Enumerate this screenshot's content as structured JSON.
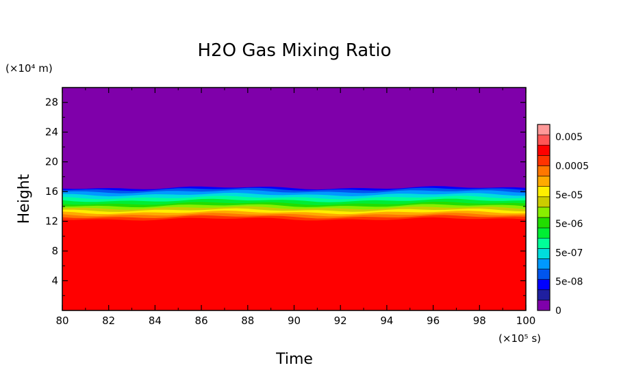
{
  "chart_data": {
    "type": "heatmap",
    "title": "H2O Gas Mixing Ratio",
    "xlabel": "Time",
    "ylabel": "Height",
    "x_unit_label": "(×10⁵ s)",
    "y_unit_label": "(×10⁴ m)",
    "xlim": [
      80,
      100
    ],
    "ylim": [
      0,
      30
    ],
    "x_ticks": [
      "80",
      "82",
      "84",
      "86",
      "88",
      "90",
      "92",
      "94",
      "96",
      "98",
      "100"
    ],
    "y_ticks": [
      "4",
      "8",
      "12",
      "16",
      "20",
      "24",
      "28"
    ],
    "colorbar": {
      "labels": [
        "0",
        "5e-08",
        "5e-07",
        "5e-06",
        "5e-05",
        "0.0005",
        "0.005"
      ],
      "colors": [
        "#7f00aa",
        "#1f1f9f",
        "#0000ff",
        "#0055ee",
        "#0099ff",
        "#00dddd",
        "#00ff99",
        "#00ee33",
        "#22dd00",
        "#88ee00",
        "#cccc00",
        "#ffee00",
        "#ffaa00",
        "#ff7700",
        "#ff3300",
        "#ff0000",
        "#ff5555",
        "#ff9999"
      ]
    },
    "field": {
      "description_levels": "height in 1e4 m of contour boundaries (upper edge of each band)",
      "bands": [
        {
          "color_index": 15,
          "top": 12.3
        },
        {
          "color_index": 14,
          "top": 12.6
        },
        {
          "color_index": 13,
          "top": 12.9
        },
        {
          "color_index": 12,
          "top": 13.2
        },
        {
          "color_index": 11,
          "top": 13.5
        },
        {
          "color_index": 10,
          "top": 13.8
        },
        {
          "color_index": 9,
          "top": 14.1
        },
        {
          "color_index": 8,
          "top": 14.4
        },
        {
          "color_index": 7,
          "top": 14.8
        },
        {
          "color_index": 6,
          "top": 15.2
        },
        {
          "color_index": 5,
          "top": 15.6
        },
        {
          "color_index": 4,
          "top": 16.0
        },
        {
          "color_index": 3,
          "top": 16.3
        },
        {
          "color_index": 2,
          "top": 16.5
        },
        {
          "color_index": 0,
          "top": 30
        }
      ]
    }
  }
}
